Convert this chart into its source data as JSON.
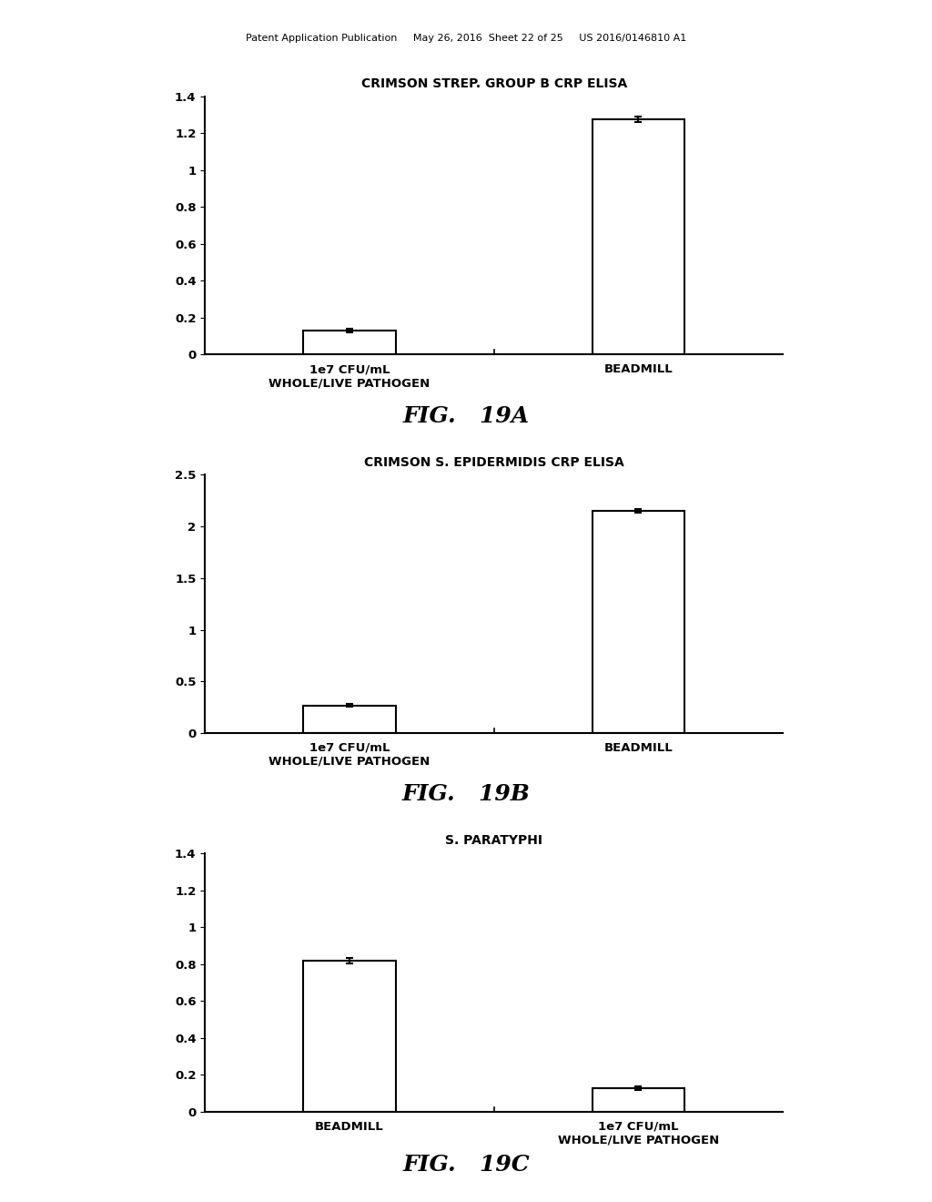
{
  "header_text": "Patent Application Publication     May 26, 2016  Sheet 22 of 25     US 2016/0146810 A1",
  "background_color": "#ffffff",
  "charts": [
    {
      "title": "CRIMSON STREP. GROUP B CRP ELISA",
      "categories": [
        "1e7 CFU/mL\nWHOLE/LIVE PATHOGEN",
        "BEADMILL"
      ],
      "values": [
        0.13,
        1.275
      ],
      "errors": [
        0.01,
        0.015
      ],
      "ylim": [
        0,
        1.4
      ],
      "yticks": [
        0,
        0.2,
        0.4,
        0.6,
        0.8,
        1.0,
        1.2,
        1.4
      ],
      "ytick_labels": [
        "0",
        "0.2",
        "0.4",
        "0.6",
        "0.8",
        "1",
        "1.2",
        "1.4"
      ],
      "fig_label": "FIG.   19A"
    },
    {
      "title": "CRIMSON S. EPIDERMIDIS CRP ELISA",
      "categories": [
        "1e7 CFU/mL\nWHOLE/LIVE PATHOGEN",
        "BEADMILL"
      ],
      "values": [
        0.27,
        2.15
      ],
      "errors": [
        0.015,
        0.02
      ],
      "ylim": [
        0,
        2.5
      ],
      "yticks": [
        0,
        0.5,
        1.0,
        1.5,
        2.0,
        2.5
      ],
      "ytick_labels": [
        "0",
        "0.5",
        "1",
        "1.5",
        "2",
        "2.5"
      ],
      "fig_label": "FIG.   19B"
    },
    {
      "title": "S. PARATYPHI",
      "categories": [
        "BEADMILL",
        "1e7 CFU/mL\nWHOLE/LIVE PATHOGEN"
      ],
      "values": [
        0.82,
        0.13
      ],
      "errors": [
        0.015,
        0.01
      ],
      "ylim": [
        0,
        1.4
      ],
      "yticks": [
        0,
        0.2,
        0.4,
        0.6,
        0.8,
        1.0,
        1.2,
        1.4
      ],
      "ytick_labels": [
        "0",
        "0.2",
        "0.4",
        "0.6",
        "0.8",
        "1",
        "1.2",
        "1.4"
      ],
      "fig_label": "FIG.   19C"
    }
  ]
}
